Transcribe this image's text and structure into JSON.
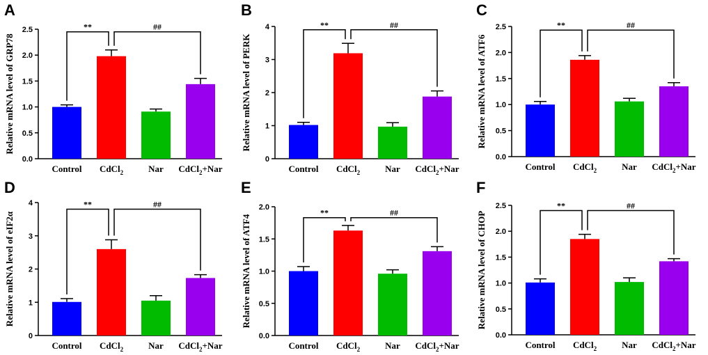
{
  "chart_data": [
    {
      "panel": "A",
      "type": "bar",
      "categories": [
        "Control",
        "CdCl2",
        "Nar",
        "CdCl2+Nar"
      ],
      "values": [
        1.0,
        1.98,
        0.91,
        1.44
      ],
      "errors": [
        0.04,
        0.12,
        0.05,
        0.11
      ],
      "ylabel": "Relative mRNA level of GRP78",
      "ylim": [
        0,
        2.5
      ],
      "yticks": [
        "0.0",
        "0.5",
        "1.0",
        "1.5",
        "2.0",
        "2.5"
      ],
      "annotations": [
        {
          "from": 0,
          "to": 1,
          "label": "**",
          "level": 2.45
        },
        {
          "from": 1,
          "to": 3,
          "label": "##",
          "level": 2.45
        }
      ]
    },
    {
      "panel": "B",
      "type": "bar",
      "categories": [
        "Control",
        "CdCl2",
        "Nar",
        "CdCl2+Nar"
      ],
      "values": [
        1.02,
        3.19,
        0.97,
        1.88
      ],
      "errors": [
        0.08,
        0.3,
        0.12,
        0.17
      ],
      "ylabel": "Relative mRNA level of PERK",
      "ylim": [
        0,
        4
      ],
      "yticks": [
        "0",
        "1",
        "2",
        "3",
        "4"
      ],
      "annotations": [
        {
          "from": 0,
          "to": 1,
          "label": "**",
          "level": 3.9
        },
        {
          "from": 1,
          "to": 3,
          "label": "##",
          "level": 3.9
        }
      ]
    },
    {
      "panel": "C",
      "type": "bar",
      "categories": [
        "Control",
        "CdCl2",
        "Nar",
        "CdCl2+Nar"
      ],
      "values": [
        1.0,
        1.86,
        1.06,
        1.35
      ],
      "errors": [
        0.06,
        0.08,
        0.06,
        0.07
      ],
      "ylabel": "Relative mRNA level of ATF6",
      "ylim": [
        0,
        2.5
      ],
      "yticks": [
        "0.0",
        "0.5",
        "1.0",
        "1.5",
        "2.0",
        "2.5"
      ],
      "annotations": [
        {
          "from": 0,
          "to": 1,
          "label": "**",
          "level": 2.43
        },
        {
          "from": 1,
          "to": 3,
          "label": "##",
          "level": 2.43
        }
      ]
    },
    {
      "panel": "D",
      "type": "bar",
      "categories": [
        "Control",
        "CdCl2",
        "Nar",
        "CdCl2+Nar"
      ],
      "values": [
        1.01,
        2.6,
        1.05,
        1.73
      ],
      "errors": [
        0.1,
        0.28,
        0.15,
        0.1
      ],
      "ylabel": "Relative mRNA level of eIF2α",
      "ylim": [
        0,
        4
      ],
      "yticks": [
        "0",
        "1",
        "2",
        "3",
        "4"
      ],
      "annotations": [
        {
          "from": 0,
          "to": 1,
          "label": "**",
          "level": 3.8
        },
        {
          "from": 1,
          "to": 3,
          "label": "##",
          "level": 3.8
        }
      ]
    },
    {
      "panel": "E",
      "type": "bar",
      "categories": [
        "Control",
        "CdCl2",
        "Nar",
        "CdCl2+Nar"
      ],
      "values": [
        1.0,
        1.63,
        0.96,
        1.31
      ],
      "errors": [
        0.07,
        0.08,
        0.06,
        0.07
      ],
      "ylabel": "Relative mRNA level of ATF4",
      "ylim": [
        0,
        2.0
      ],
      "yticks": [
        "0.0",
        "0.5",
        "1.0",
        "1.5",
        "2.0"
      ],
      "annotations": [
        {
          "from": 0,
          "to": 1,
          "label": "**",
          "level": 1.83
        },
        {
          "from": 1,
          "to": 3,
          "label": "##",
          "level": 1.83
        }
      ]
    },
    {
      "panel": "F",
      "type": "bar",
      "categories": [
        "Control",
        "CdCl2",
        "Nar",
        "CdCl2+Nar"
      ],
      "values": [
        1.01,
        1.85,
        1.02,
        1.42
      ],
      "errors": [
        0.07,
        0.09,
        0.08,
        0.05
      ],
      "ylabel": "Relative mRNA level of CHOP",
      "ylim": [
        0,
        2.5
      ],
      "yticks": [
        "0.0",
        "0.5",
        "1.0",
        "1.5",
        "2.0",
        "2.5"
      ],
      "annotations": [
        {
          "from": 0,
          "to": 1,
          "label": "**",
          "level": 2.4
        },
        {
          "from": 1,
          "to": 3,
          "label": "##",
          "level": 2.4
        }
      ]
    }
  ],
  "colors": {
    "Control": "#0000ff",
    "CdCl2": "#ff0000",
    "Nar": "#00bb00",
    "CdCl2+Nar": "#9900ee",
    "axis": "#000000"
  }
}
